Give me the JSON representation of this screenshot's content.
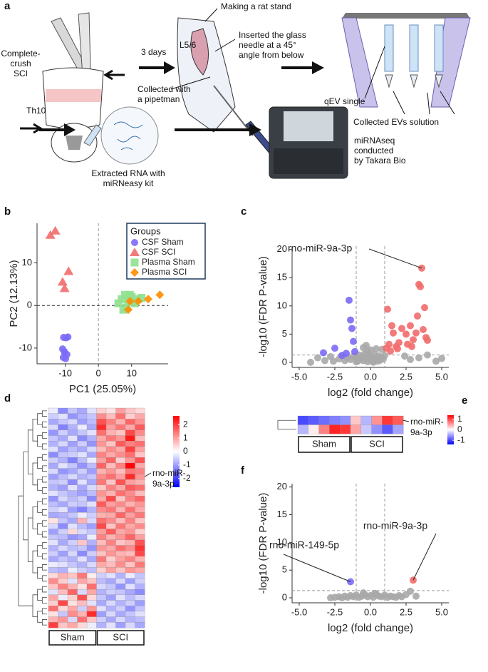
{
  "diagram": {
    "panel": "a",
    "labels": {
      "sci": "Complete-\ncrush\nSCI",
      "th10": "Th10",
      "days": "3 days",
      "stand": "Making a rat stand",
      "level": "L5/6",
      "needle": "Inserted the glass\nneedle at a 45°\nangle from below",
      "pipetman": "Collected with\na pipetman",
      "qev": "qEV single",
      "evs": "Collected EVs solution",
      "rna": "Extracted RNA with\nmiRNeasy kit",
      "seq": "miRNAseq\nconducted\nby Takara Bio"
    }
  },
  "chart_data": [
    {
      "type": "scatter",
      "panel": "b",
      "xlabel": "PC1 (25.05%)",
      "ylabel": "PC2 (12.13%)",
      "xlim": [
        -18.5,
        21
      ],
      "ylim": [
        -13.7,
        19.3
      ],
      "xticks": [
        -10,
        0,
        10
      ],
      "yticks": [
        -10,
        0,
        10
      ],
      "reference_lines": {
        "x": [
          0
        ],
        "y": [
          0
        ]
      },
      "legend_title": "Groups",
      "legend": "top-right",
      "series": [
        {
          "name": "CSF Sham",
          "color": "#7b6cf6",
          "marker": "circle",
          "x": [
            -10.5,
            -9.8,
            -9.2,
            -10.8,
            -10.2,
            -9.5,
            -10.6,
            -9.9,
            -10.3
          ],
          "y": [
            -7.5,
            -7.6,
            -7.4,
            -10.2,
            -11,
            -11.5,
            -12.2,
            -12.5,
            -10.8
          ]
        },
        {
          "name": "CSF SCI",
          "color": "#f26b6b",
          "marker": "triangle",
          "x": [
            -14.5,
            -13,
            -10.8,
            -9,
            -10.2
          ],
          "y": [
            16.5,
            17.5,
            5.5,
            8,
            4
          ]
        },
        {
          "name": "Plasma Sham",
          "color": "#8fe08f",
          "marker": "square",
          "x": [
            6,
            7,
            8,
            9,
            10,
            11,
            12,
            8.5,
            10.5,
            7.5,
            9.5,
            13
          ],
          "y": [
            0.5,
            1.5,
            2.5,
            1,
            2,
            0.5,
            1.5,
            -0.5,
            1,
            -1,
            2.5,
            1.8
          ]
        },
        {
          "name": "Plasma SCI",
          "color": "#ff8c00",
          "marker": "diamond",
          "x": [
            9.5,
            9,
            12,
            15,
            18.5
          ],
          "y": [
            1,
            -1,
            1,
            1.5,
            2.5
          ]
        }
      ]
    },
    {
      "type": "scatter",
      "panel": "c",
      "xlabel": "log2 (fold change)",
      "ylabel": "-log10 (FDR P-value)",
      "xlim": [
        -5.5,
        5.5
      ],
      "ylim": [
        -0.9,
        20.6
      ],
      "xticks": [
        {
          "value": -5,
          "label": "-5.0"
        },
        -2.5,
        {
          "value": 0,
          "label": "0.0"
        },
        2.5,
        {
          "value": 5,
          "label": "5.0"
        }
      ],
      "yticks": [
        0,
        5,
        10,
        15,
        20
      ],
      "reference_lines": {
        "x": [
          -1,
          1
        ],
        "y": [
          1.3
        ]
      },
      "annotations": [
        "rno-miR-9a-3p"
      ],
      "series": [
        {
          "color": "#a9a9a9",
          "marker": "circle",
          "x": [
            -4.2,
            -3.7,
            -3.2,
            -2.8,
            -2.6,
            -2.2,
            -2,
            -1.8,
            -1.6,
            -1.4,
            -1.2,
            -1,
            -0.9,
            -0.8,
            -0.7,
            -0.6,
            -0.5,
            -0.4,
            -0.3,
            -0.2,
            -0.1,
            0,
            0.1,
            0.2,
            0.3,
            0.4,
            0.5,
            0.6,
            0.7,
            0.8,
            0.9,
            1,
            -0.5,
            0,
            0.4,
            -1,
            -0.3,
            0.8,
            2.4,
            2.8,
            3.4,
            4,
            4.6,
            5,
            -0.2,
            0.2
          ],
          "y": [
            0,
            0.8,
            0.3,
            1,
            0.2,
            0.6,
            1.2,
            0.3,
            0.8,
            0.5,
            1.1,
            0.9,
            0.2,
            1.3,
            0.6,
            1,
            0.3,
            1.5,
            0.8,
            0.1,
            1.2,
            0.5,
            0.9,
            0.3,
            1.4,
            0.7,
            0.2,
            1.1,
            0.4,
            0.9,
            0.6,
            1.2,
            2.6,
            2.2,
            2.4,
            0.1,
            3.0,
            2.3,
            1.1,
            0.5,
            0.8,
            1.3,
            0.2,
            0.7,
            1.9,
            0.0
          ]
        },
        {
          "color": "#7b6cf6",
          "marker": "circle",
          "x": [
            -1.5,
            -1.4,
            -1.3,
            -1.2,
            -2.5,
            -3.3,
            -1.7,
            -2,
            -1.1
          ],
          "y": [
            11,
            7.5,
            6,
            3.7,
            2.5,
            1.7,
            1.6,
            1.2,
            1.9
          ]
        },
        {
          "color": "#f26b6b",
          "marker": "circle",
          "x": [
            3.6,
            3.4,
            3.5,
            1.2,
            1.5,
            1.6,
            2.2,
            2.5,
            2.8,
            3.0,
            3.2,
            3.8,
            3.9,
            4.0,
            2.0,
            1.8,
            1.3,
            2.6,
            3.3,
            1.1,
            1.4,
            2.9,
            3.7,
            1.9
          ],
          "y": [
            16.7,
            13.8,
            13.4,
            9.4,
            6.5,
            5.2,
            6,
            5,
            6.5,
            4,
            5.2,
            9.7,
            4.4,
            3.9,
            3.5,
            2.8,
            3.2,
            3.2,
            8.2,
            2.5,
            2,
            2.8,
            5.8,
            2.4
          ]
        }
      ]
    },
    {
      "type": "heatmap",
      "panel": "d",
      "colors": [
        "#0000ff",
        "#ffffff",
        "#ff0000"
      ],
      "zlim": [
        -2.65,
        2.65
      ],
      "zticks": [
        2,
        1,
        0,
        -1,
        -2
      ],
      "column_groups": [
        "Sham",
        "Sham",
        "Sham",
        "Sham",
        "Sham",
        "SCI",
        "SCI",
        "SCI",
        "SCI",
        "SCI"
      ],
      "row_labels": [
        null,
        null,
        null,
        null,
        null,
        null,
        null,
        null,
        null,
        null,
        null,
        null,
        "rno-miR-\n9a-3p",
        null,
        null,
        null,
        null,
        null,
        null,
        null,
        null,
        null,
        null,
        null,
        null,
        null,
        null,
        null,
        null,
        null,
        null,
        null,
        null,
        null,
        null,
        null,
        null,
        null,
        null,
        null
      ],
      "values": [
        [
          -0.2,
          -1.2,
          -0.6,
          -0.9,
          -0.3,
          0.5,
          0.3,
          1.0,
          0.6,
          0.4
        ],
        [
          -0.5,
          -0.3,
          -1.1,
          -0.8,
          -0.6,
          1.2,
          0.7,
          1.5,
          0.5,
          0.9
        ],
        [
          -0.9,
          -0.6,
          -0.4,
          -1.0,
          -0.7,
          1.8,
          1.3,
          0.8,
          1.6,
          1.1
        ],
        [
          -0.4,
          -1.3,
          -0.8,
          -0.2,
          -0.9,
          2.2,
          1.0,
          1.4,
          0.9,
          1.7
        ],
        [
          -1.1,
          -0.5,
          -0.9,
          -0.6,
          -0.3,
          1.5,
          0.8,
          0.6,
          1.9,
          1.2
        ],
        [
          -0.6,
          -0.9,
          -0.3,
          -1.2,
          -0.8,
          0.9,
          1.4,
          1.1,
          2.4,
          0.7
        ],
        [
          -0.8,
          -0.4,
          -1.0,
          -0.5,
          -1.1,
          1.1,
          0.6,
          1.7,
          1.3,
          1.5
        ],
        [
          -0.3,
          -1.0,
          -0.7,
          -0.9,
          -0.4,
          0.7,
          1.2,
          0.9,
          2.0,
          1.0
        ],
        [
          -1.2,
          -0.6,
          -0.5,
          -0.3,
          -0.9,
          1.3,
          0.9,
          1.2,
          1.5,
          0.6
        ],
        [
          -0.5,
          -0.8,
          -1.3,
          -0.7,
          -0.2,
          1.0,
          1.6,
          0.5,
          1.1,
          1.8
        ],
        [
          -0.9,
          -0.3,
          -0.6,
          -1.1,
          -0.7,
          1.6,
          0.7,
          1.3,
          2.6,
          0.9
        ],
        [
          -0.4,
          -1.1,
          -0.9,
          -0.5,
          -1.0,
          0.8,
          1.1,
          0.7,
          1.4,
          1.3
        ],
        [
          -1.0,
          -0.7,
          -0.4,
          -0.8,
          -0.6,
          1.2,
          1.5,
          1.0,
          2.2,
          1.1
        ],
        [
          -0.6,
          -0.5,
          -1.2,
          -0.3,
          -0.9,
          1.4,
          0.6,
          1.8,
          1.0,
          0.8
        ],
        [
          -0.8,
          -1.0,
          -0.3,
          -0.9,
          -0.4,
          0.6,
          1.3,
          0.9,
          1.7,
          1.5
        ],
        [
          -0.3,
          -0.6,
          -0.8,
          -1.0,
          -0.7,
          1.1,
          0.8,
          1.5,
          1.2,
          0.7
        ],
        [
          -1.1,
          -0.4,
          -0.7,
          -0.5,
          -1.2,
          0.9,
          1.9,
          0.6,
          1.3,
          1.6
        ],
        [
          -0.7,
          -0.9,
          -0.5,
          -0.6,
          -0.3,
          1.7,
          1.0,
          1.2,
          0.8,
          1.1
        ],
        [
          -0.5,
          -0.3,
          -1.0,
          -1.3,
          -0.8,
          1.2,
          1.4,
          0.8,
          1.5,
          0.9
        ],
        [
          -0.9,
          -0.8,
          -0.6,
          -0.2,
          -0.5,
          0.8,
          0.9,
          1.6,
          1.0,
          1.4
        ],
        [
          0.3,
          -0.6,
          -0.9,
          0.8,
          -0.4,
          1.5,
          1.2,
          0.7,
          1.3,
          0.6
        ],
        [
          -0.4,
          -1.2,
          -0.3,
          -0.7,
          -1.0,
          1.9,
          0.6,
          1.4,
          0.9,
          1.2
        ],
        [
          -1.0,
          -0.5,
          0.4,
          -0.4,
          -0.6,
          1.0,
          1.7,
          0.9,
          1.1,
          0.5
        ],
        [
          -0.6,
          -0.7,
          -1.1,
          -0.9,
          -0.2,
          1.3,
          0.8,
          1.1,
          1.6,
          1.0
        ],
        [
          -0.3,
          -0.9,
          -0.5,
          0.6,
          -0.8,
          0.7,
          1.3,
          0.6,
          0.8,
          1.8
        ],
        [
          -0.8,
          -0.4,
          -0.7,
          -0.6,
          -1.1,
          1.1,
          0.9,
          1.5,
          1.2,
          2.1
        ],
        [
          -0.5,
          -1.0,
          -0.4,
          -1.2,
          -0.5,
          0.6,
          1.1,
          0.8,
          0.7,
          1.9
        ],
        [
          -0.9,
          -0.6,
          -0.8,
          -0.3,
          -0.9,
          1.4,
          0.5,
          1.0,
          1.3,
          0.8
        ],
        [
          -0.2,
          -0.3,
          -0.6,
          -0.8,
          -0.4,
          0.9,
          0.7,
          1.2,
          0.6,
          1.4
        ],
        [
          -0.7,
          -0.8,
          -0.2,
          -0.5,
          -0.7,
          0.5,
          1.0,
          0.6,
          1.1,
          0.9
        ],
        [
          0.4,
          0.8,
          0.6,
          1.4,
          0.2,
          -0.5,
          -0.3,
          -0.8,
          -0.2,
          -0.6
        ],
        [
          1.2,
          0.5,
          -0.3,
          0.9,
          0.6,
          -0.7,
          -0.9,
          -0.4,
          -1.0,
          -0.5
        ],
        [
          0.6,
          1.3,
          0.8,
          0.3,
          1.5,
          -0.4,
          -0.6,
          -1.1,
          -0.3,
          -0.8
        ],
        [
          -0.3,
          0.7,
          1.6,
          -0.4,
          0.9,
          -0.8,
          -0.5,
          -0.6,
          -0.9,
          -1.2
        ],
        [
          0.9,
          -0.2,
          0.5,
          1.8,
          0.4,
          -0.6,
          -1.0,
          -0.3,
          -0.7,
          -0.4
        ],
        [
          0.5,
          1.9,
          0.3,
          0.7,
          -0.3,
          -0.9,
          -0.4,
          -0.8,
          -0.5,
          -1.0
        ],
        [
          1.5,
          0.4,
          0.9,
          -0.5,
          1.1,
          -0.3,
          -0.8,
          -0.5,
          -1.1,
          -0.6
        ],
        [
          0.3,
          -0.6,
          1.2,
          0.8,
          2.2,
          -1.0,
          -0.4,
          -0.9,
          -0.6,
          -0.3
        ],
        [
          0.8,
          1.1,
          -0.4,
          1.5,
          0.6,
          -0.5,
          -0.9,
          -0.4,
          -0.8,
          -0.7
        ],
        [
          2.0,
          0.6,
          0.9,
          0.4,
          -0.2,
          -0.8,
          -0.3,
          -1.0,
          -0.4,
          -0.9
        ]
      ]
    },
    {
      "type": "heatmap",
      "panel": "e",
      "colors": [
        "#0000ff",
        "#ffffff",
        "#ff0000"
      ],
      "zlim": [
        -1.4,
        1.4
      ],
      "zticks": [
        1,
        0,
        -1
      ],
      "column_groups": [
        "Sham",
        "Sham",
        "Sham",
        "Sham",
        "Sham",
        "SCI",
        "SCI",
        "SCI",
        "SCI",
        "SCI"
      ],
      "row_labels": [
        "rno-miR-\n9a-3p",
        null
      ],
      "values": [
        [
          -1.0,
          -0.9,
          -0.8,
          -0.7,
          -0.6,
          0.3,
          -0.4,
          0.6,
          1.1,
          0.9
        ],
        [
          -0.4,
          0.1,
          0.7,
          1.2,
          1.1,
          0.5,
          -0.3,
          -0.6,
          -0.9,
          -0.5
        ]
      ]
    },
    {
      "type": "scatter",
      "panel": "f",
      "xlabel": "log2 (fold change)",
      "ylabel": "-log10 (FDR P-value)",
      "xlim": [
        -5.5,
        5.5
      ],
      "ylim": [
        -0.9,
        20.6
      ],
      "xticks": [
        {
          "value": -5,
          "label": "-5.0"
        },
        -2.5,
        {
          "value": 0,
          "label": "0.0"
        },
        2.5,
        {
          "value": 5,
          "label": "5.0"
        }
      ],
      "yticks": [
        0,
        5,
        10,
        15,
        20
      ],
      "reference_lines": {
        "x": [
          -1,
          1
        ],
        "y": [
          1.3
        ]
      },
      "annotations": [
        "rno-miR-149-5p",
        "rno-miR-9a-3p"
      ],
      "series": [
        {
          "color": "#a9a9a9",
          "marker": "circle",
          "x": [
            -2.8,
            -2.5,
            -2.2,
            -2,
            -1.8,
            -1.6,
            -1.4,
            -1.2,
            -1,
            -0.8,
            -0.6,
            -0.4,
            -0.2,
            0,
            0.2,
            0.4,
            0.6,
            0.8,
            1,
            1.2,
            1.4,
            1.6,
            1.8,
            2,
            2.2,
            2.5,
            2.8,
            3.2,
            -0.5,
            0.3
          ],
          "y": [
            0,
            0.1,
            0.2,
            0,
            0.3,
            0.1,
            0.4,
            0.2,
            0.5,
            0.1,
            0.3,
            0.6,
            0.2,
            0.4,
            0.1,
            0.7,
            0.3,
            0.2,
            0.5,
            0.1,
            0.3,
            0.2,
            0.1,
            0.4,
            0.2,
            0.6,
            1.2,
            0.3,
            0.9,
            0.8
          ]
        },
        {
          "color": "#7b6cf6",
          "marker": "circle",
          "x": [
            -1.4
          ],
          "y": [
            2.9
          ]
        },
        {
          "color": "#f26b6b",
          "marker": "circle",
          "x": [
            3.0
          ],
          "y": [
            3.2
          ]
        }
      ]
    }
  ]
}
